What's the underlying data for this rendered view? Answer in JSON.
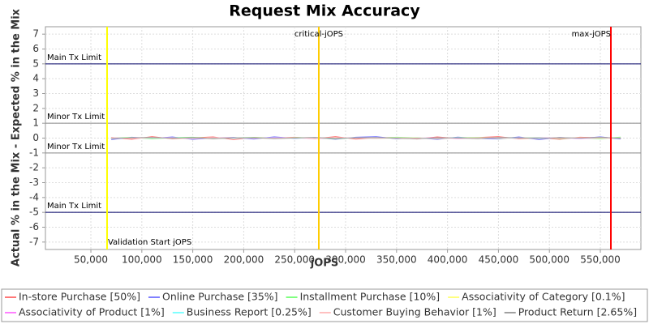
{
  "chart_data": {
    "type": "line",
    "title": "Request Mix Accuracy",
    "x_label": "jOPS",
    "y_label": "Actual % in the Mix - Expected % in the Mix",
    "xlim": [
      5400,
      589800
    ],
    "ylim": [
      -7.5,
      7.5
    ],
    "xticks": [
      {
        "value": 50000,
        "label": "50,000"
      },
      {
        "value": 100000,
        "label": "100,000"
      },
      {
        "value": 150000,
        "label": "150,000"
      },
      {
        "value": 200000,
        "label": "200,000"
      },
      {
        "value": 250000,
        "label": "250,000"
      },
      {
        "value": 300000,
        "label": "300,000"
      },
      {
        "value": 350000,
        "label": "350,000"
      },
      {
        "value": 400000,
        "label": "400,000"
      },
      {
        "value": 450000,
        "label": "450,000"
      },
      {
        "value": 500000,
        "label": "500,000"
      },
      {
        "value": 550000,
        "label": "550,000"
      }
    ],
    "yticks": [
      -7,
      -6,
      -5,
      -4,
      -3,
      -2,
      -1,
      0,
      1,
      2,
      3,
      4,
      5,
      6,
      7
    ],
    "grid": true,
    "legend": "bottom",
    "horizontal_lines": [
      {
        "value": 5,
        "label": "Main Tx Limit",
        "color": "#000066"
      },
      {
        "value": 1,
        "label": "Minor Tx Limit",
        "color": "#888888"
      },
      {
        "value": -1,
        "label": "Minor Tx Limit",
        "color": "#888888"
      },
      {
        "value": -5,
        "label": "Main Tx Limit",
        "color": "#000066"
      }
    ],
    "vertical_lines": [
      {
        "value": 65900,
        "label": "Validation Start jOPS",
        "color": "#ffff00"
      },
      {
        "value": 273700,
        "label": "critical-jOPS",
        "color": "#ffcc00"
      },
      {
        "value": 560350,
        "label": "max-jOPS",
        "color": "#ff0000"
      }
    ],
    "x": [
      70000,
      90000,
      110000,
      130000,
      150000,
      170000,
      190000,
      210000,
      230000,
      250000,
      270000,
      290000,
      310000,
      330000,
      350000,
      370000,
      390000,
      410000,
      430000,
      450000,
      470000,
      490000,
      510000,
      530000,
      550000,
      570000
    ],
    "series": [
      {
        "name": "In-store Purchase [50%]",
        "color": "#ff7777",
        "values": [
          0.05,
          -0.08,
          0.1,
          -0.05,
          0.03,
          0.08,
          -0.1,
          0.05,
          0,
          0.06,
          -0.04,
          0.1,
          -0.07,
          0.02,
          0.05,
          -0.06,
          0.08,
          -0.03,
          0.04,
          0.1,
          -0.05,
          0.02,
          -0.08,
          0.06,
          0.03,
          -0.04
        ]
      },
      {
        "name": "Online Purchase [35%]",
        "color": "#8080ff",
        "values": [
          -0.1,
          0.06,
          -0.03,
          0.08,
          -0.09,
          0.02,
          0.05,
          -0.07,
          0.09,
          -0.02,
          0.04,
          -0.08,
          0.06,
          0.1,
          -0.05,
          0.03,
          -0.09,
          0.07,
          -0.02,
          -0.06,
          0.08,
          -0.1,
          0.05,
          -0.03,
          0.09,
          -0.06
        ]
      },
      {
        "name": "Installment Purchase [10%]",
        "color": "#80ff80",
        "values": [
          0.02,
          0.04,
          -0.05,
          0.03,
          0.06,
          -0.04,
          0.02,
          0.05,
          -0.03,
          0.04,
          0.01,
          -0.05,
          0.03,
          -0.02,
          0.06,
          0.02,
          -0.04,
          0.03,
          0.05,
          -0.02,
          0.01,
          0.04,
          -0.03,
          0.02,
          -0.05,
          0.07
        ]
      },
      {
        "name": "Associativity of Category [0.1%]",
        "color": "#ffff80",
        "values": [
          0,
          0.01,
          0,
          -0.01,
          0,
          0.01,
          0,
          0,
          -0.01,
          0,
          0.01,
          0,
          0,
          -0.01,
          0,
          0.01,
          0,
          0,
          0.01,
          0,
          -0.01,
          0,
          0,
          0.01,
          0,
          0
        ]
      },
      {
        "name": "Associativity of Product [1%]",
        "color": "#ff80ff",
        "values": [
          0.02,
          -0.01,
          0.01,
          0.02,
          -0.02,
          0.01,
          0,
          -0.01,
          0.02,
          0.01,
          -0.02,
          0,
          0.01,
          0.02,
          -0.01,
          0,
          0.02,
          -0.02,
          0.01,
          0,
          -0.01,
          0.02,
          0.01,
          -0.02,
          0,
          0.01
        ]
      },
      {
        "name": "Business Report [0.25%]",
        "color": "#80ffff",
        "values": [
          0.01,
          0,
          -0.01,
          0.01,
          0.01,
          0,
          -0.01,
          0,
          0.01,
          -0.01,
          0,
          0.01,
          0,
          -0.01,
          0.01,
          0,
          0,
          0.01,
          -0.01,
          0,
          0.01,
          0,
          -0.01,
          0.01,
          0,
          0
        ]
      },
      {
        "name": "Customer Buying Behavior [1%]",
        "color": "#ffc0c0",
        "values": [
          0.03,
          -0.02,
          0.02,
          0.01,
          -0.03,
          0.02,
          0.03,
          -0.01,
          0,
          0.02,
          -0.02,
          0.03,
          0.01,
          -0.02,
          0.02,
          0,
          -0.03,
          0.01,
          0.02,
          -0.01,
          0.03,
          -0.02,
          0,
          0.02,
          -0.01,
          0.01
        ]
      },
      {
        "name": "Product Return [2.65%]",
        "color": "#a0a0a0",
        "values": [
          -0.04,
          0.03,
          0.05,
          -0.02,
          0.04,
          -0.05,
          0.02,
          0.03,
          -0.04,
          0.01,
          0.05,
          -0.03,
          0.02,
          0.04,
          -0.02,
          -0.05,
          0.03,
          0.01,
          -0.04,
          0.05,
          0.02,
          -0.03,
          0.04,
          -0.01,
          0.06,
          -0.02
        ]
      }
    ]
  }
}
